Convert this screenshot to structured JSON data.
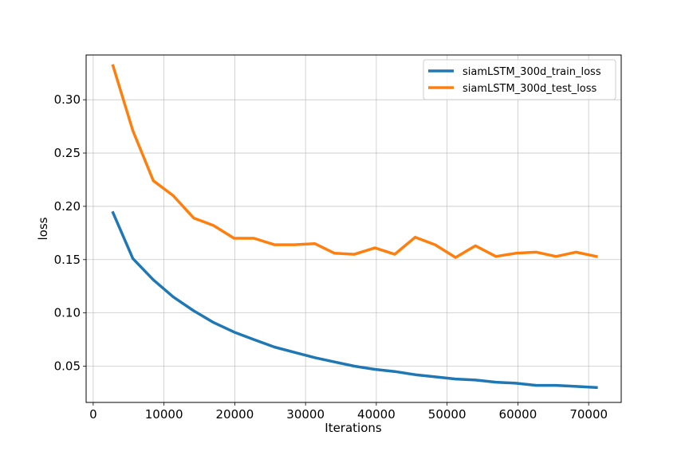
{
  "chart_data": {
    "type": "line",
    "title": "",
    "xlabel": "Iterations",
    "ylabel": "loss",
    "xlim": [
      -1000,
      74600
    ],
    "ylim": [
      0.016,
      0.342
    ],
    "xticks": [
      0,
      10000,
      20000,
      30000,
      40000,
      50000,
      60000,
      70000
    ],
    "yticks": [
      0.05,
      0.1,
      0.15,
      0.2,
      0.25,
      0.3
    ],
    "ytick_labels": [
      "0.05",
      "0.10",
      "0.15",
      "0.20",
      "0.25",
      "0.30"
    ],
    "grid": true,
    "legend_position": "top-right",
    "series": [
      {
        "name": "siamLSTM_300d_train_loss",
        "color": "#1f77b4",
        "x": [
          2800,
          5600,
          8500,
          11300,
          14200,
          17000,
          19900,
          22700,
          25600,
          28400,
          31300,
          34100,
          36900,
          39800,
          42600,
          45500,
          48300,
          51200,
          54000,
          56900,
          59700,
          62600,
          65400,
          68200,
          71100
        ],
        "y": [
          0.194,
          0.151,
          0.131,
          0.115,
          0.102,
          0.091,
          0.082,
          0.075,
          0.068,
          0.063,
          0.058,
          0.054,
          0.05,
          0.047,
          0.045,
          0.042,
          0.04,
          0.038,
          0.037,
          0.035,
          0.034,
          0.032,
          0.032,
          0.031,
          0.03
        ]
      },
      {
        "name": "siamLSTM_300d_test_loss",
        "color": "#ff7f0e",
        "x": [
          2800,
          5600,
          8500,
          11300,
          14200,
          17000,
          19900,
          22700,
          25600,
          28400,
          31300,
          34100,
          36900,
          39800,
          42600,
          45500,
          48300,
          51200,
          54000,
          56900,
          59700,
          62600,
          65400,
          68200,
          71100
        ],
        "y": [
          0.332,
          0.271,
          0.224,
          0.21,
          0.189,
          0.182,
          0.17,
          0.17,
          0.164,
          0.164,
          0.165,
          0.156,
          0.155,
          0.161,
          0.155,
          0.171,
          0.164,
          0.152,
          0.163,
          0.153,
          0.156,
          0.157,
          0.153,
          0.157,
          0.153
        ]
      }
    ]
  }
}
